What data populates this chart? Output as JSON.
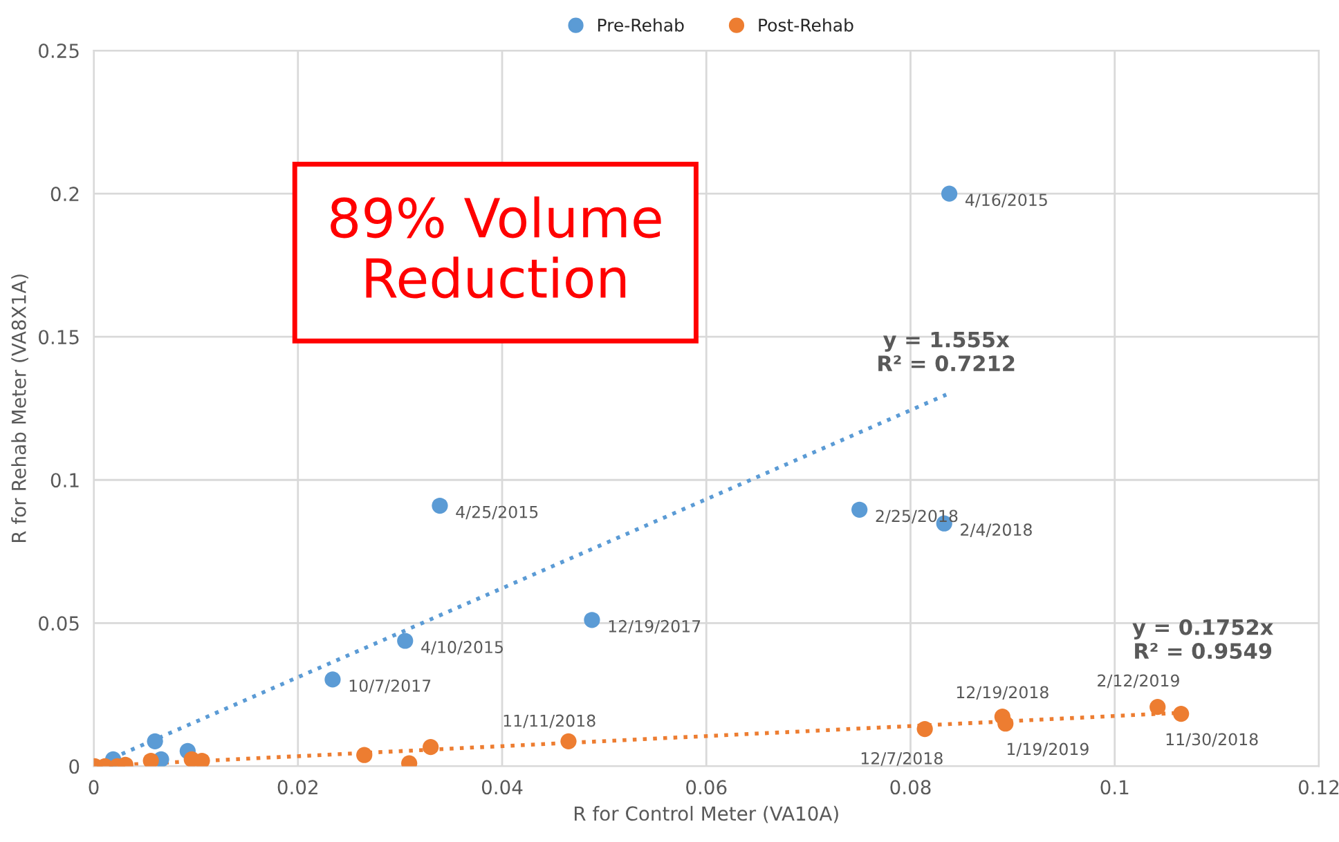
{
  "chart_data": {
    "type": "scatter",
    "xlabel": "R for Control Meter (VA10A)",
    "ylabel": "R for Rehab Meter (VA8X1A)",
    "xlim": [
      0,
      0.12
    ],
    "xticks": [
      0,
      0.02,
      0.04,
      0.06,
      0.08,
      0.1,
      0.12
    ],
    "ylim": [
      0,
      0.25
    ],
    "yticks": [
      0,
      0.05,
      0.1,
      0.15,
      0.2,
      0.25
    ],
    "grid": true,
    "legend": "top",
    "marker": "circle",
    "series": [
      {
        "name": "Pre-Rehab",
        "color": "#5b9bd5",
        "x": [
          0.0838,
          0.0339,
          0.075,
          0.0833,
          0.0488,
          0.0305,
          0.0234,
          0.006,
          0.0066,
          0.0092,
          0.0019
        ],
        "values": [
          0.2,
          0.091,
          0.0896,
          0.0848,
          0.0511,
          0.0438,
          0.0303,
          0.0087,
          0.0024,
          0.0053,
          0.0024
        ]
      },
      {
        "name": "Post-Rehab",
        "color": "#ed7d31",
        "x": [
          0.0001,
          0.0011,
          0.0023,
          0.0031,
          0.0056,
          0.0096,
          0.0106,
          0.0265,
          0.0309,
          0.033,
          0.0465,
          0.0814,
          0.089,
          0.0893,
          0.1042,
          0.1065
        ],
        "values": [
          0,
          0,
          0,
          0.0005,
          0.0019,
          0.0024,
          0.0019,
          0.0039,
          0.001,
          0.0067,
          0.0087,
          0.013,
          0.0173,
          0.0149,
          0.0207,
          0.0183
        ]
      },
      {
        "type": "line",
        "color": "#5b9bd5",
        "line_style": "dotted",
        "marker": "none",
        "x": [
          0,
          0.0835
        ],
        "values": [
          0,
          0.1298
        ]
      },
      {
        "type": "line",
        "color": "#ed7d31",
        "line_style": "dotted",
        "marker": "none",
        "x": [
          0,
          0.106
        ],
        "values": [
          0,
          0.0186
        ]
      }
    ],
    "annotations": [
      "89% Volume Reduction",
      {
        "text": "4/16/2015",
        "x": 0.0838,
        "y": 0.2
      },
      {
        "text": "4/25/2015",
        "x": 0.0339,
        "y": 0.091
      },
      {
        "text": "2/25/2018",
        "x": 0.075,
        "y": 0.0896
      },
      {
        "text": "2/4/2018",
        "x": 0.0833,
        "y": 0.0848
      },
      {
        "text": "12/19/2017",
        "x": 0.0488,
        "y": 0.0511
      },
      {
        "text": "4/10/2015",
        "x": 0.0305,
        "y": 0.0438
      },
      {
        "text": "10/7/2017",
        "x": 0.0234,
        "y": 0.0303
      },
      {
        "text": "11/11/2018",
        "x": 0.0465,
        "y": 0.0087
      },
      {
        "text": "12/7/2018",
        "x": 0.0814,
        "y": 0.013
      },
      {
        "text": "12/19/2018",
        "x": 0.089,
        "y": 0.0173
      },
      {
        "text": "1/19/2019",
        "x": 0.0893,
        "y": 0.0149
      },
      {
        "text": "2/12/2019",
        "x": 0.1042,
        "y": 0.0207
      },
      {
        "text": "11/30/2018",
        "x": 0.1065,
        "y": 0.0183
      },
      {
        "text": "y = 1.555x\nR² = 0.7212",
        "x": 0.0835,
        "y": 0.1298
      },
      {
        "text": "y = 0.1752x\nR² = 0.9549",
        "x": 0.106,
        "y": 0.0186
      }
    ]
  }
}
